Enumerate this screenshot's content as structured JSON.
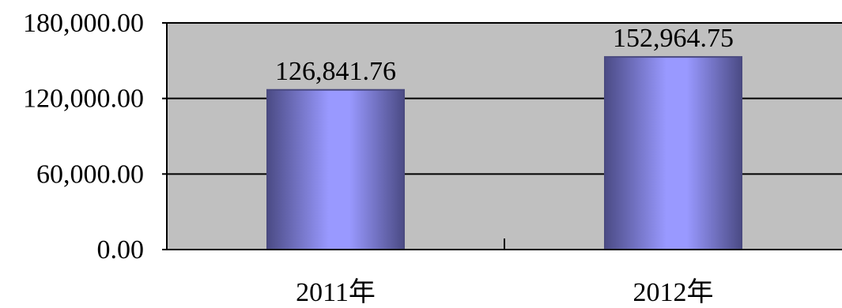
{
  "chart_data": {
    "type": "bar",
    "categories": [
      "2011年",
      "2012年"
    ],
    "values": [
      126841.76,
      152964.75
    ],
    "data_labels": [
      "126,841.76",
      "152,964.75"
    ],
    "y_ticks": [
      0,
      60000,
      120000,
      180000
    ],
    "y_tick_labels": [
      "0.00",
      "60,000.00",
      "120,000.00",
      "180,000.00"
    ],
    "ylim": [
      0,
      180000
    ],
    "grid": true,
    "legend": "none",
    "colors": {
      "plot_background": "#c0c0c0",
      "bar_edge": "#4a4a80",
      "bar_light": "#9999ff",
      "bar_dark": "#4b4b85",
      "axis": "#000000"
    }
  }
}
